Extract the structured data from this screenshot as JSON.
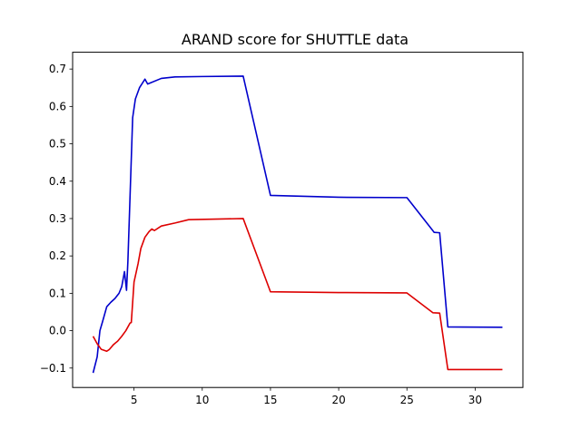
{
  "chart_data": {
    "type": "line",
    "title": "ARAND score for SHUTTLE data",
    "xlabel": "",
    "ylabel": "",
    "xlim": [
      0.5,
      33.5
    ],
    "ylim": [
      -0.152,
      0.745
    ],
    "x_ticks": [
      5,
      10,
      15,
      20,
      25,
      30
    ],
    "x_tick_labels": [
      "5",
      "10",
      "15",
      "20",
      "25",
      "30"
    ],
    "y_ticks": [
      -0.1,
      0.0,
      0.1,
      0.2,
      0.3,
      0.4,
      0.5,
      0.6,
      0.7
    ],
    "y_tick_labels": [
      "−0.1",
      "0.0",
      "0.1",
      "0.2",
      "0.3",
      "0.4",
      "0.5",
      "0.6",
      "0.7"
    ],
    "grid": false,
    "legend": "none",
    "series": [
      {
        "color": "#0000cc",
        "x": [
          2.0,
          2.3,
          2.5,
          2.7,
          3.0,
          3.3,
          3.6,
          3.9,
          4.1,
          4.3,
          4.45,
          4.55,
          4.9,
          5.1,
          5.4,
          5.8,
          6.0,
          7.0,
          8.0,
          10.0,
          13.0,
          15.0,
          20.0,
          25.0,
          27.0,
          27.4,
          28.0,
          32.0
        ],
        "y": [
          -0.113,
          -0.07,
          0.0,
          0.025,
          0.064,
          0.076,
          0.086,
          0.1,
          0.118,
          0.158,
          0.108,
          0.185,
          0.57,
          0.62,
          0.65,
          0.673,
          0.66,
          0.675,
          0.679,
          0.68,
          0.681,
          0.362,
          0.357,
          0.356,
          0.263,
          0.262,
          0.01,
          0.009
        ]
      },
      {
        "color": "#dd0000",
        "x": [
          2.0,
          2.3,
          2.6,
          3.0,
          3.2,
          3.5,
          3.8,
          4.1,
          4.4,
          4.7,
          4.8,
          5.0,
          5.3,
          5.5,
          5.8,
          6.1,
          6.3,
          6.5,
          7.0,
          8.0,
          9.0,
          13.0,
          15.0,
          20.0,
          25.0,
          26.9,
          27.4,
          28.0,
          32.0
        ],
        "y": [
          -0.015,
          -0.035,
          -0.05,
          -0.055,
          -0.05,
          -0.037,
          -0.028,
          -0.015,
          0.0,
          0.02,
          0.022,
          0.13,
          0.18,
          0.22,
          0.25,
          0.265,
          0.272,
          0.268,
          0.28,
          0.288,
          0.297,
          0.3,
          0.104,
          0.102,
          0.101,
          0.048,
          0.047,
          -0.104,
          -0.104
        ]
      }
    ]
  }
}
